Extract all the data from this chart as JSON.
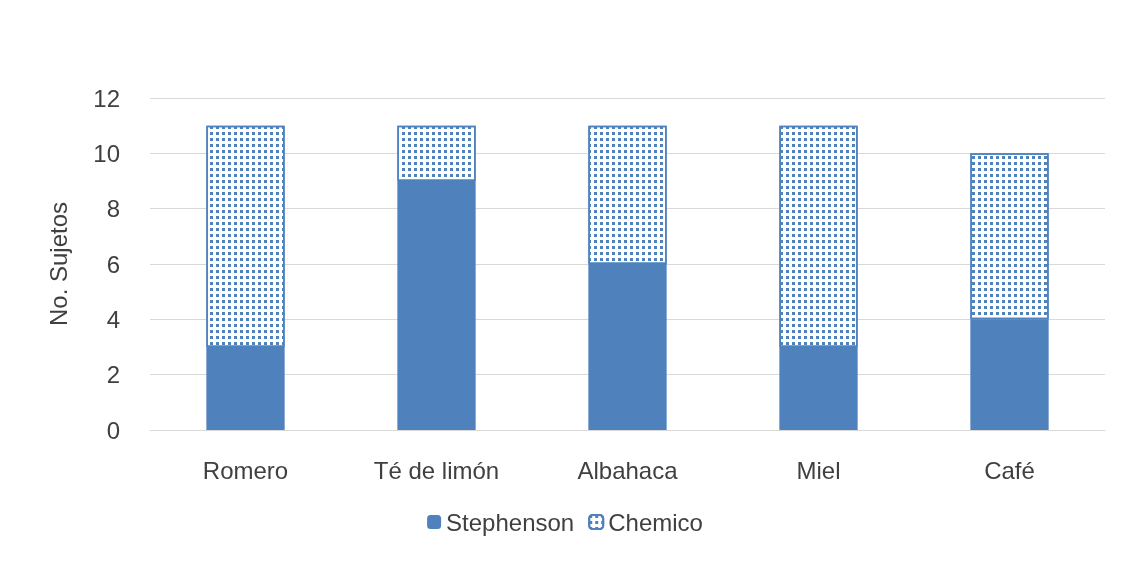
{
  "chart_data": {
    "type": "bar",
    "stacked": true,
    "ylabel": "No. Sujetos",
    "categories": [
      "Romero",
      "Té de limón",
      "Albahaca",
      "Miel",
      "Café"
    ],
    "series": [
      {
        "name": "Stephenson",
        "color": "#4f81bd",
        "values": [
          3,
          9,
          6,
          3,
          4
        ]
      },
      {
        "name": "Chemico",
        "color": "#4f81bd",
        "values": [
          8,
          2,
          5,
          8,
          6
        ]
      }
    ],
    "ylim": [
      0,
      12
    ],
    "yticks": [
      0,
      2,
      4,
      6,
      8,
      10,
      12
    ],
    "grid": "y",
    "legend": "bottom"
  }
}
